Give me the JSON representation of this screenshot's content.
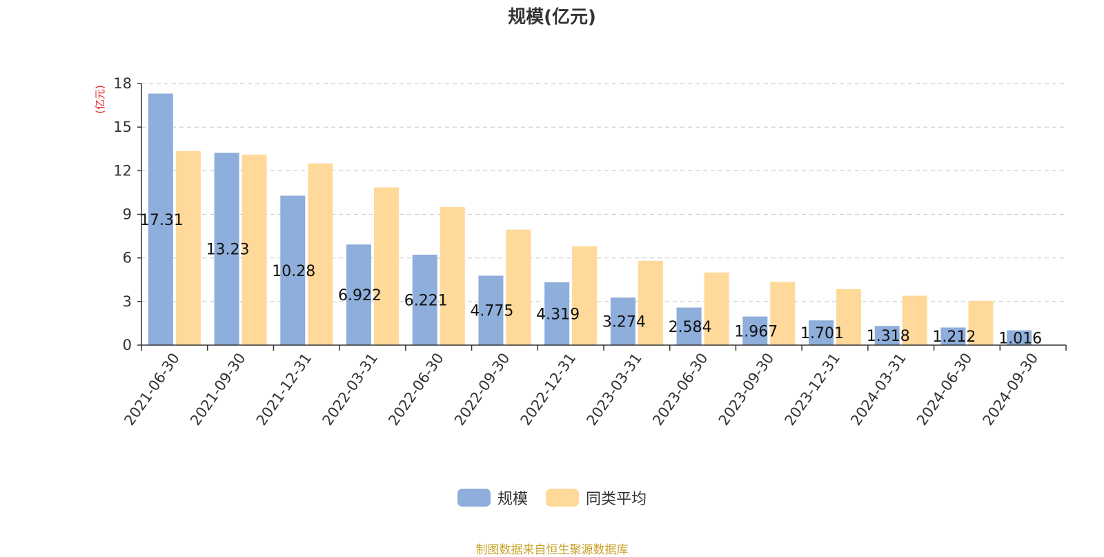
{
  "chart_data": {
    "type": "bar",
    "title": "规模(亿元)",
    "ylabel": "(亿元)",
    "ylim": [
      0,
      18
    ],
    "yticks": [
      0,
      3,
      6,
      9,
      12,
      15,
      18
    ],
    "grid": true,
    "legend_position": "bottom-center",
    "categories": [
      "2021-06-30",
      "2021-09-30",
      "2021-12-31",
      "2022-03-31",
      "2022-06-30",
      "2022-09-30",
      "2022-12-31",
      "2023-03-31",
      "2023-06-30",
      "2023-09-30",
      "2023-12-31",
      "2024-03-31",
      "2024-06-30",
      "2024-09-30"
    ],
    "series": [
      {
        "name": "规模",
        "color": "#8eaedb",
        "values": [
          17.31,
          13.23,
          10.28,
          6.922,
          6.221,
          4.775,
          4.319,
          3.274,
          2.584,
          1.967,
          1.701,
          1.318,
          1.212,
          1.016
        ],
        "labels": [
          "17.31",
          "13.23",
          "10.28",
          "6.922",
          "6.221",
          "4.775",
          "4.319",
          "3.274",
          "2.584",
          "1.967",
          "1.701",
          "1.318",
          "1.212",
          "1.016"
        ]
      },
      {
        "name": "同类平均",
        "color": "#ffd99a",
        "values": [
          13.35,
          13.1,
          12.5,
          10.85,
          9.5,
          7.95,
          6.8,
          5.8,
          5.0,
          4.35,
          3.85,
          3.4,
          3.05,
          null
        ]
      }
    ]
  },
  "source_note": "制图数据来自恒生聚源数据库"
}
